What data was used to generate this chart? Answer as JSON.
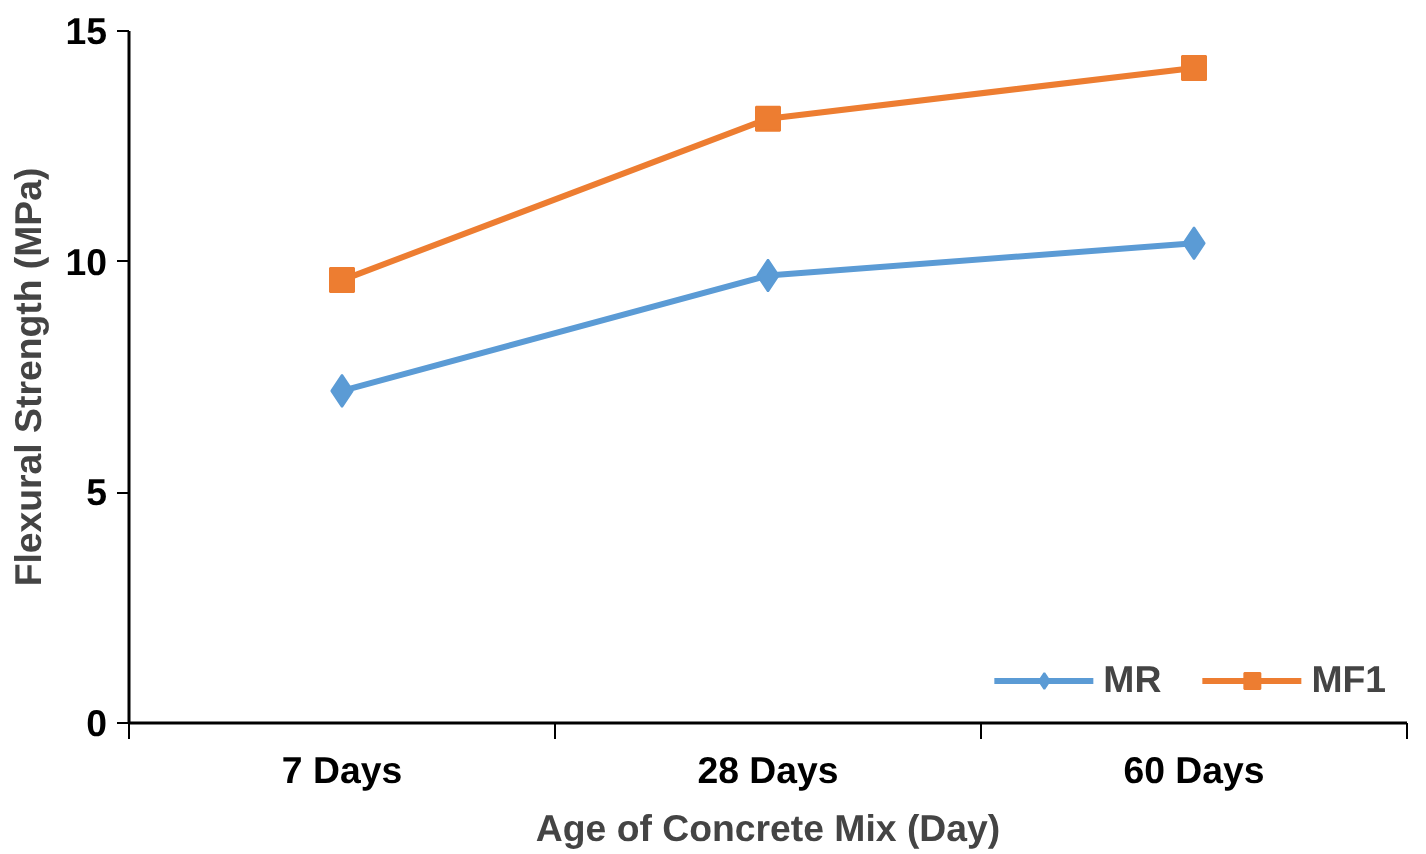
{
  "chart_data": {
    "type": "line",
    "xlabel": "Age of Concrete Mix (Day)",
    "ylabel": "Flexural Strength (MPa)",
    "categories": [
      "7 Days",
      "28 Days",
      "60 Days"
    ],
    "series": [
      {
        "name": "MR",
        "color": "#5b9bd5",
        "marker": "diamond",
        "values": [
          7.2,
          9.7,
          10.4
        ]
      },
      {
        "name": "MF1",
        "color": "#ed7d31",
        "marker": "square",
        "values": [
          9.6,
          13.1,
          14.2
        ]
      }
    ],
    "ylim": [
      0,
      15
    ],
    "yticks": [
      0,
      5,
      10,
      15
    ],
    "grid": false,
    "legend": "bottom right",
    "line_style": "solid"
  }
}
